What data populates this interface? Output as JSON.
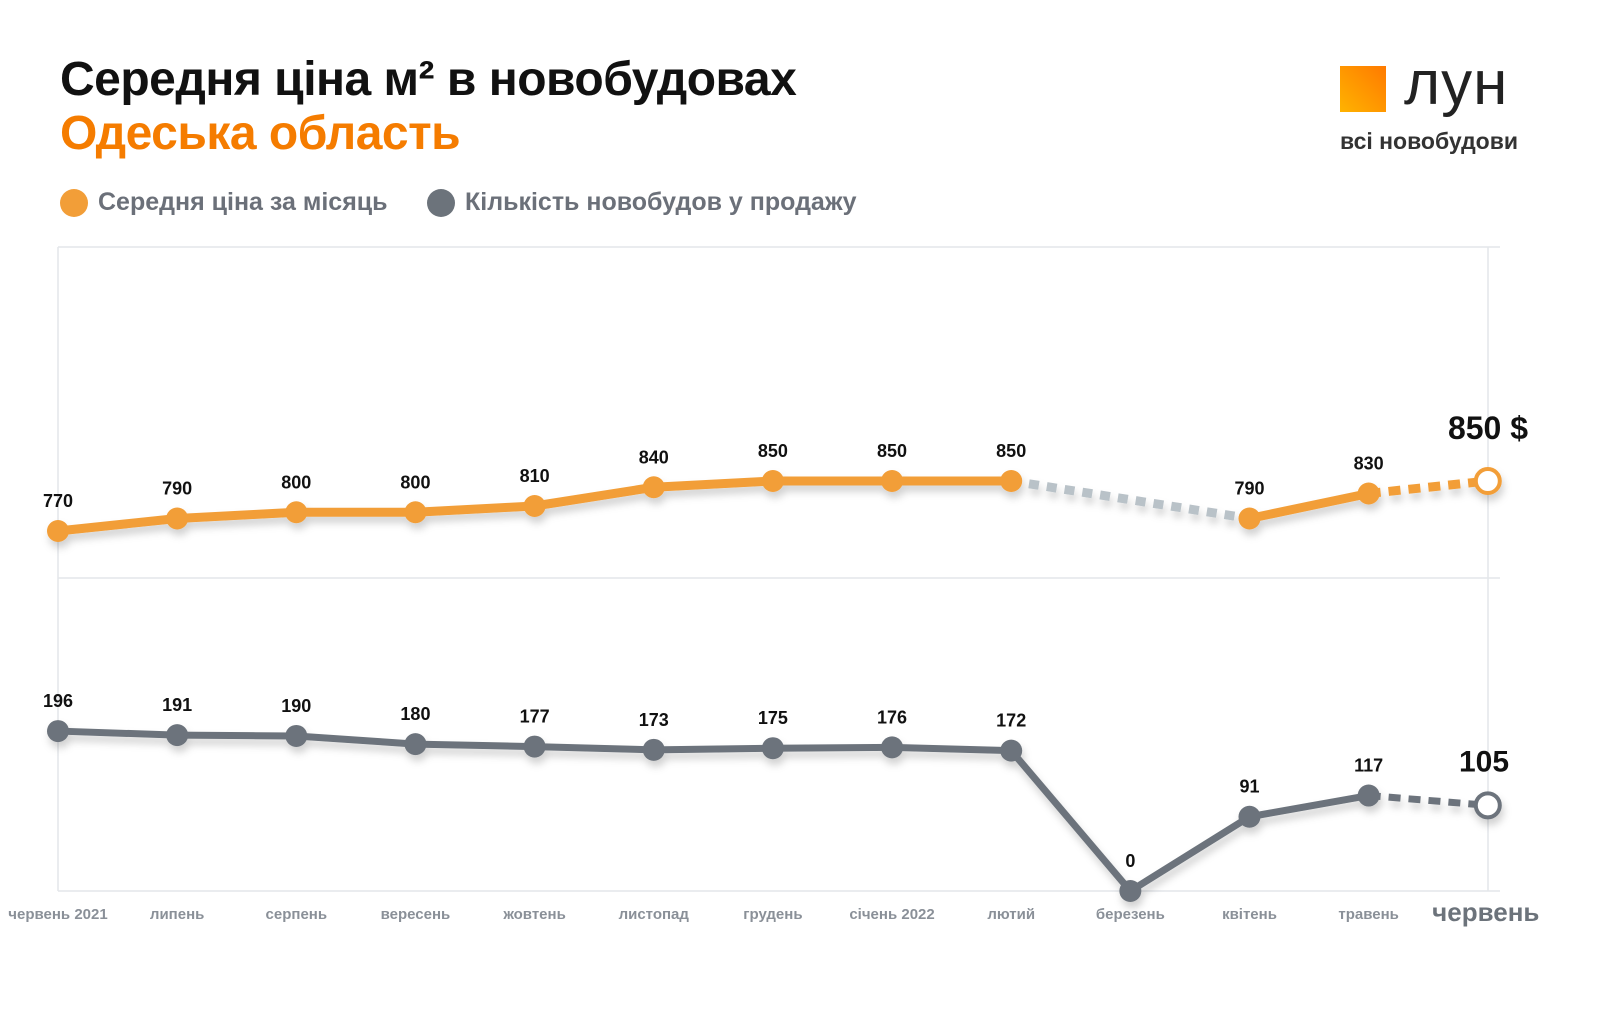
{
  "title": "Середня ціна м² в новобудовах",
  "subtitle": "Одеська область",
  "logo": {
    "word": "лун",
    "tagline": "всі новобудови"
  },
  "colors": {
    "price": "#f29e38",
    "count": "#6c737b",
    "gap": "#b9c2c8",
    "accent": "#f57c00"
  },
  "chart_data": [
    {
      "type": "line",
      "series": [
        {
          "name": "Середня ціна за місяць",
          "values": [
            770,
            790,
            800,
            800,
            810,
            840,
            850,
            850,
            850,
            null,
            790,
            830,
            850
          ]
        }
      ],
      "categories": [
        "червень 2021",
        "липень",
        "серпень",
        "вересень",
        "жовтень",
        "листопад",
        "грудень",
        "січень 2022",
        "лютий",
        "березень",
        "квітень",
        "травень",
        "червень"
      ],
      "labels": [
        "770",
        "790",
        "800",
        "800",
        "810",
        "840",
        "850",
        "850",
        "850",
        "",
        "790",
        "830",
        "850 $"
      ],
      "legend": "top-left",
      "grid": true
    },
    {
      "type": "line",
      "series": [
        {
          "name": "Кількість новобудов у продажу",
          "values": [
            196,
            191,
            190,
            180,
            177,
            173,
            175,
            176,
            172,
            0,
            91,
            117,
            105
          ]
        }
      ],
      "categories": [
        "червень 2021",
        "липень",
        "серпень",
        "вересень",
        "жовтень",
        "листопад",
        "грудень",
        "січень 2022",
        "лютий",
        "березень",
        "квітень",
        "травень",
        "червень"
      ],
      "labels": [
        "196",
        "191",
        "190",
        "180",
        "177",
        "173",
        "175",
        "176",
        "172",
        "0",
        "91",
        "117",
        "105"
      ]
    }
  ]
}
